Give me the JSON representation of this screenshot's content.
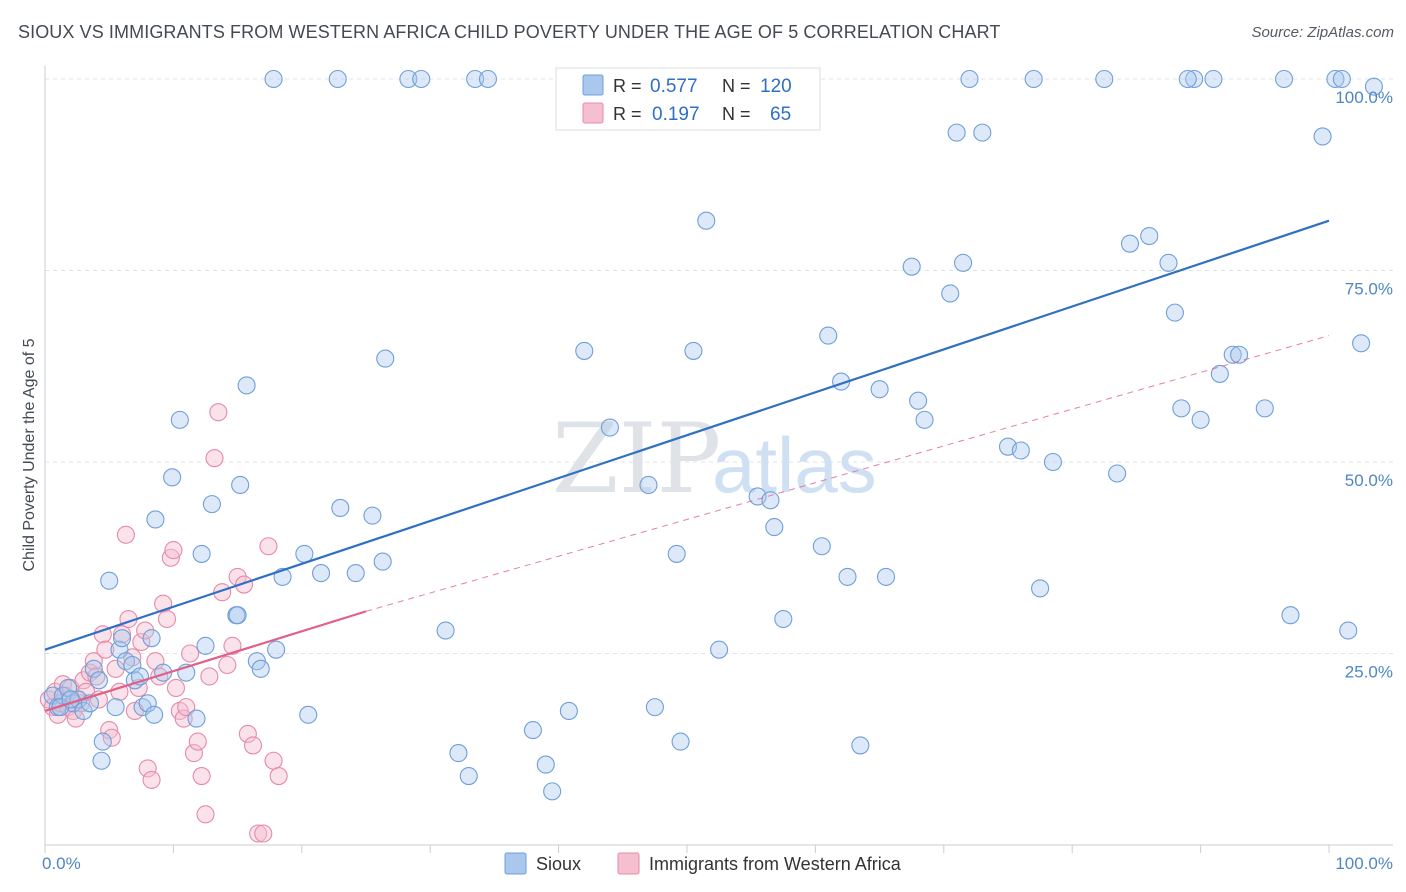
{
  "title": "SIOUX VS IMMIGRANTS FROM WESTERN AFRICA CHILD POVERTY UNDER THE AGE OF 5 CORRELATION CHART",
  "source": "Source: ZipAtlas.com",
  "watermark": {
    "zip": "ZIP",
    "atlas": "atlas"
  },
  "legend_box": {
    "r_label": "R =",
    "n_label": "N =",
    "rows": [
      {
        "r": "0.577",
        "n": "120"
      },
      {
        "r": "0.197",
        "n": "65"
      }
    ]
  },
  "colors": {
    "sioux_fill": "#aac8ee",
    "sioux_stroke": "#6f9fd8",
    "sioux_line": "#2f6fc4",
    "wa_fill": "#f5bfd0",
    "wa_stroke": "#e68aa8",
    "wa_line": "#e0608a",
    "grid": "#dfe3e8",
    "tick_text": "#4f86c6"
  },
  "chart_data": {
    "type": "scatter",
    "title": "SIOUX VS IMMIGRANTS FROM WESTERN AFRICA CHILD POVERTY UNDER THE AGE OF 5 CORRELATION CHART",
    "xlabel": "",
    "ylabel": "Child Poverty Under the Age of 5",
    "xlim": [
      0,
      100
    ],
    "ylim": [
      0,
      105
    ],
    "x_tick_labels": [
      "0.0%",
      "100.0%"
    ],
    "y_ticks": [
      25,
      50,
      75,
      100
    ],
    "y_tick_labels": [
      "25.0%",
      "50.0%",
      "75.0%",
      "100.0%"
    ],
    "grid": true,
    "legend_position": "bottom",
    "series": [
      {
        "name": "Sioux",
        "r": 0.577,
        "n": 120,
        "trend": {
          "x0": 0,
          "y0": 25.5,
          "x1": 100,
          "y1": 81.5,
          "style": "solid"
        },
        "points": [
          [
            0.6,
            19.5
          ],
          [
            1.0,
            18.0
          ],
          [
            1.4,
            19.5
          ],
          [
            1.8,
            20.5
          ],
          [
            2.2,
            18.5
          ],
          [
            2.6,
            19.0
          ],
          [
            3.0,
            17.5
          ],
          [
            1.2,
            18.0
          ],
          [
            2.0,
            19.0
          ],
          [
            3.5,
            18.5
          ],
          [
            3.8,
            23.0
          ],
          [
            4.2,
            21.5
          ],
          [
            4.5,
            13.5
          ],
          [
            4.4,
            11.0
          ],
          [
            5.5,
            18.0
          ],
          [
            5.0,
            34.5
          ],
          [
            5.8,
            25.5
          ],
          [
            6.0,
            27.0
          ],
          [
            6.3,
            24.0
          ],
          [
            6.8,
            23.5
          ],
          [
            7.0,
            21.5
          ],
          [
            7.4,
            22.0
          ],
          [
            7.6,
            18.0
          ],
          [
            8.0,
            18.5
          ],
          [
            8.5,
            17.0
          ],
          [
            8.3,
            27.0
          ],
          [
            8.6,
            42.5
          ],
          [
            9.2,
            22.5
          ],
          [
            11.0,
            22.5
          ],
          [
            10.5,
            55.5
          ],
          [
            11.8,
            16.5
          ],
          [
            9.9,
            48.0
          ],
          [
            12.5,
            26.0
          ],
          [
            12.2,
            38.0
          ],
          [
            15.2,
            47.0
          ],
          [
            14.9,
            30.0
          ],
          [
            13.0,
            44.5
          ],
          [
            15.7,
            60.0
          ],
          [
            16.5,
            24.0
          ],
          [
            16.8,
            23.0
          ],
          [
            15.0,
            30.0
          ],
          [
            18.0,
            25.5
          ],
          [
            18.5,
            35.0
          ],
          [
            20.2,
            38.0
          ],
          [
            20.5,
            17.0
          ],
          [
            21.5,
            35.5
          ],
          [
            23.0,
            44.0
          ],
          [
            24.2,
            35.5
          ],
          [
            26.3,
            37.0
          ],
          [
            25.5,
            43.0
          ],
          [
            17.8,
            100.0
          ],
          [
            22.8,
            100.0
          ],
          [
            28.3,
            100.0
          ],
          [
            29.3,
            100.0
          ],
          [
            33.5,
            100.0
          ],
          [
            34.5,
            100.0
          ],
          [
            26.5,
            63.5
          ],
          [
            31.2,
            28.0
          ],
          [
            32.2,
            12.0
          ],
          [
            33.0,
            9.0
          ],
          [
            38.0,
            15.0
          ],
          [
            39.0,
            10.5
          ],
          [
            39.5,
            7.0
          ],
          [
            40.8,
            17.5
          ],
          [
            42.0,
            64.5
          ],
          [
            44.0,
            54.5
          ],
          [
            47.0,
            47.0
          ],
          [
            47.5,
            18.0
          ],
          [
            49.5,
            13.5
          ],
          [
            49.2,
            38.0
          ],
          [
            50.5,
            64.5
          ],
          [
            51.5,
            81.5
          ],
          [
            52.5,
            25.5
          ],
          [
            55.5,
            45.5
          ],
          [
            56.5,
            45.0
          ],
          [
            56.8,
            41.5
          ],
          [
            57.5,
            29.5
          ],
          [
            60.5,
            39.0
          ],
          [
            61.0,
            66.5
          ],
          [
            62.0,
            60.5
          ],
          [
            62.5,
            35.0
          ],
          [
            63.5,
            13.0
          ],
          [
            65.0,
            59.5
          ],
          [
            65.5,
            35.0
          ],
          [
            67.5,
            75.5
          ],
          [
            68.0,
            58.0
          ],
          [
            68.5,
            55.5
          ],
          [
            70.5,
            72.0
          ],
          [
            71.0,
            93.0
          ],
          [
            71.5,
            76.0
          ],
          [
            72.0,
            100.0
          ],
          [
            73.0,
            93.0
          ],
          [
            75.0,
            52.0
          ],
          [
            76.0,
            51.5
          ],
          [
            77.0,
            100.0
          ],
          [
            77.5,
            33.5
          ],
          [
            78.5,
            50.0
          ],
          [
            82.5,
            100.0
          ],
          [
            83.5,
            48.5
          ],
          [
            84.5,
            78.5
          ],
          [
            86.0,
            79.5
          ],
          [
            87.5,
            76.0
          ],
          [
            88.0,
            69.5
          ],
          [
            88.5,
            57.0
          ],
          [
            89.5,
            100.0
          ],
          [
            89.0,
            100.0
          ],
          [
            90.0,
            55.5
          ],
          [
            91.0,
            100.0
          ],
          [
            91.5,
            61.5
          ],
          [
            92.5,
            64.0
          ],
          [
            93.0,
            64.0
          ],
          [
            95.0,
            57.0
          ],
          [
            96.5,
            100.0
          ],
          [
            97.0,
            30.0
          ],
          [
            99.5,
            92.5
          ],
          [
            100.5,
            100.0
          ],
          [
            101.0,
            100.0
          ],
          [
            101.5,
            28.0
          ],
          [
            103.5,
            99.0
          ],
          [
            102.5,
            65.5
          ]
        ]
      },
      {
        "name": "Immigrants from Western Africa",
        "r": 0.197,
        "n": 65,
        "trend": {
          "x0": 0,
          "y0": 17.5,
          "x1": 25,
          "y1": 30.5,
          "style": "solid",
          "dashed_to": {
            "x": 100,
            "y": 66.5
          }
        },
        "points": [
          [
            0.3,
            19.0
          ],
          [
            0.6,
            18.0
          ],
          [
            0.8,
            20.0
          ],
          [
            1.0,
            17.0
          ],
          [
            1.2,
            18.5
          ],
          [
            1.4,
            21.0
          ],
          [
            1.6,
            19.5
          ],
          [
            1.8,
            18.0
          ],
          [
            2.0,
            20.5
          ],
          [
            2.2,
            17.5
          ],
          [
            2.4,
            16.5
          ],
          [
            2.6,
            19.0
          ],
          [
            2.8,
            18.5
          ],
          [
            3.0,
            21.5
          ],
          [
            3.2,
            20.0
          ],
          [
            3.5,
            22.5
          ],
          [
            3.8,
            24.0
          ],
          [
            4.0,
            22.0
          ],
          [
            4.2,
            19.0
          ],
          [
            4.5,
            27.5
          ],
          [
            4.7,
            25.5
          ],
          [
            5.0,
            15.0
          ],
          [
            5.2,
            14.0
          ],
          [
            5.5,
            23.0
          ],
          [
            5.8,
            20.0
          ],
          [
            6.0,
            27.5
          ],
          [
            6.3,
            40.5
          ],
          [
            6.5,
            29.5
          ],
          [
            6.8,
            24.5
          ],
          [
            7.0,
            17.5
          ],
          [
            7.3,
            20.5
          ],
          [
            7.5,
            26.5
          ],
          [
            7.8,
            28.0
          ],
          [
            8.0,
            10.0
          ],
          [
            8.3,
            8.5
          ],
          [
            8.6,
            24.0
          ],
          [
            8.9,
            22.0
          ],
          [
            9.2,
            31.5
          ],
          [
            9.5,
            29.5
          ],
          [
            9.8,
            37.5
          ],
          [
            10.0,
            38.5
          ],
          [
            10.2,
            20.5
          ],
          [
            10.5,
            17.5
          ],
          [
            10.8,
            16.5
          ],
          [
            11.0,
            18.0
          ],
          [
            11.3,
            25.0
          ],
          [
            11.6,
            12.0
          ],
          [
            11.9,
            13.5
          ],
          [
            12.2,
            9.0
          ],
          [
            12.5,
            4.0
          ],
          [
            12.8,
            22.0
          ],
          [
            13.2,
            50.5
          ],
          [
            13.5,
            56.5
          ],
          [
            13.8,
            33.0
          ],
          [
            14.2,
            23.5
          ],
          [
            14.6,
            26.0
          ],
          [
            15.0,
            35.0
          ],
          [
            15.5,
            34.0
          ],
          [
            15.8,
            14.5
          ],
          [
            16.2,
            13.0
          ],
          [
            16.6,
            1.5
          ],
          [
            17.0,
            1.5
          ],
          [
            17.4,
            39.0
          ],
          [
            17.8,
            11.0
          ],
          [
            18.2,
            9.0
          ]
        ]
      }
    ]
  },
  "bottom_legend": [
    "Sioux",
    "Immigrants from Western Africa"
  ]
}
